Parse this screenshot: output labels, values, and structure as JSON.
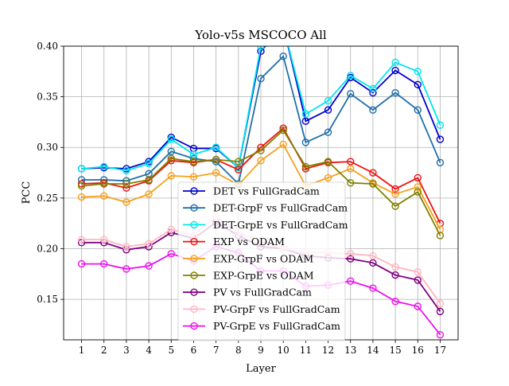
{
  "chart_data": {
    "type": "line",
    "title": "Yolo-v5s MSCOCO All",
    "xlabel": "Layer",
    "ylabel": "PCC",
    "x": [
      1,
      2,
      3,
      4,
      5,
      6,
      7,
      8,
      9,
      10,
      11,
      12,
      13,
      14,
      15,
      16,
      17
    ],
    "xticks": [
      "1",
      "2",
      "3",
      "4",
      "5",
      "6",
      "7",
      "8",
      "9",
      "10",
      "11",
      "12",
      "13",
      "14",
      "15",
      "16",
      "17"
    ],
    "yticks": [
      "0.15",
      "0.20",
      "0.25",
      "0.30",
      "0.35",
      "0.40"
    ],
    "xlim": [
      0.2,
      17.8
    ],
    "ylim": [
      0.11,
      0.4
    ],
    "grid": true,
    "legend_position": "center",
    "series": [
      {
        "name": "DET vs FullGradCam",
        "color": "#0000cc",
        "values": [
          0.279,
          0.28,
          0.279,
          0.286,
          0.31,
          0.299,
          0.299,
          0.28,
          0.395,
          0.42,
          0.326,
          0.337,
          0.369,
          0.354,
          0.376,
          0.362,
          0.308
        ]
      },
      {
        "name": "DET-GrpF vs FullGradCam",
        "color": "#1f6fa8",
        "values": [
          0.268,
          0.268,
          0.267,
          0.274,
          0.296,
          0.289,
          0.286,
          0.264,
          0.368,
          0.39,
          0.305,
          0.315,
          0.353,
          0.337,
          0.354,
          0.337,
          0.285
        ]
      },
      {
        "name": "DET-GrpE vs FullGradCam",
        "color": "#00e5ee",
        "values": [
          0.279,
          0.281,
          0.277,
          0.284,
          0.308,
          0.293,
          0.3,
          0.28,
          0.4,
          0.42,
          0.333,
          0.346,
          0.371,
          0.358,
          0.384,
          0.375,
          0.322
        ]
      },
      {
        "name": "EXP vs ODAM",
        "color": "#ee1111",
        "values": [
          0.264,
          0.265,
          0.26,
          0.267,
          0.287,
          0.285,
          0.288,
          0.278,
          0.3,
          0.319,
          0.279,
          0.285,
          0.286,
          0.275,
          0.259,
          0.27,
          0.225
        ]
      },
      {
        "name": "EXP-GrpF vs ODAM",
        "color": "#f5a11c",
        "values": [
          0.251,
          0.252,
          0.246,
          0.254,
          0.272,
          0.271,
          0.275,
          0.263,
          0.287,
          0.303,
          0.262,
          0.27,
          0.279,
          0.265,
          0.254,
          0.261,
          0.219
        ]
      },
      {
        "name": "EXP-GrpE vs ODAM",
        "color": "#808000",
        "values": [
          0.262,
          0.264,
          0.264,
          0.268,
          0.289,
          0.286,
          0.288,
          0.286,
          0.297,
          0.317,
          0.281,
          0.286,
          0.265,
          0.264,
          0.242,
          0.256,
          0.213
        ]
      },
      {
        "name": "PV vs FullGradCam",
        "color": "#800080",
        "values": [
          0.206,
          0.206,
          0.199,
          0.202,
          0.216,
          0.21,
          0.226,
          0.213,
          0.202,
          0.2,
          0.193,
          0.191,
          0.19,
          0.186,
          0.174,
          0.169,
          0.138
        ]
      },
      {
        "name": "PV-GrpF vs FullGradCam",
        "color": "#ffb6c1",
        "values": [
          0.209,
          0.209,
          0.202,
          0.205,
          0.219,
          0.213,
          0.232,
          0.216,
          0.207,
          0.2,
          0.196,
          0.196,
          0.195,
          0.193,
          0.182,
          0.177,
          0.146
        ]
      },
      {
        "name": "PV-GrpE vs FullGradCam",
        "color": "#ee11ee",
        "values": [
          0.185,
          0.185,
          0.18,
          0.183,
          0.195,
          0.188,
          0.202,
          0.196,
          0.178,
          0.178,
          0.163,
          0.164,
          0.168,
          0.161,
          0.148,
          0.143,
          0.115
        ]
      }
    ]
  }
}
